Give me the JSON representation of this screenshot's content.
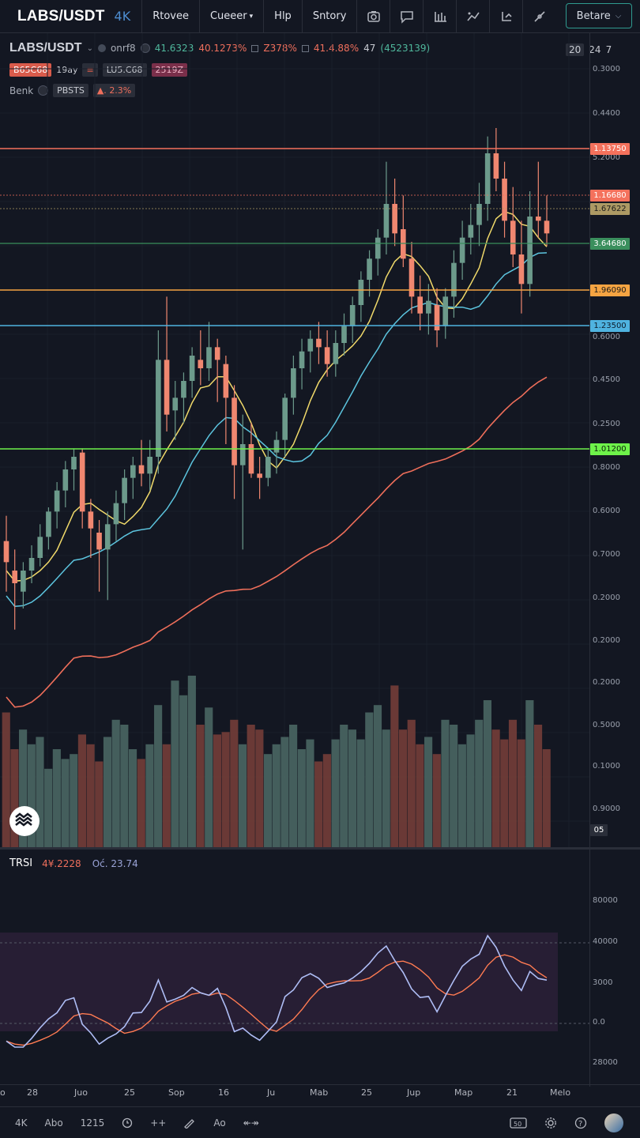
{
  "toolbar": {
    "symbol": "LABS/USDT",
    "resolution": "4K",
    "menu": [
      "Rtovee",
      "Cueeer",
      "Hlp",
      "Sntory"
    ],
    "beta_label": "Betare"
  },
  "legend": {
    "title": "LABS/USDT",
    "source": "onrf8",
    "open": "41.6323",
    "high": "40.1273%",
    "low": "Z378%",
    "close": "41.4.88%",
    "count": "47",
    "change": "(4523139)",
    "chip_a": "B65C68",
    "tag_a": "19ay",
    "chip_b": "LU5.C68",
    "chip_c": "2519Z",
    "benk_label": "Benk",
    "pbsts_label": "PBSTS",
    "pct_label": "2.3%",
    "right_a": "20",
    "right_b": "24",
    "right_c": "7"
  },
  "price_axis": {
    "ticks": [
      {
        "label": "0.3000",
        "price": 0.3
      },
      {
        "label": "0.4400",
        "price": 0.44
      },
      {
        "label": "5.2000",
        "price": 5.2
      },
      {
        "label": "0.6000",
        "price": 0.6
      },
      {
        "label": "0.4500",
        "price": 0.45
      },
      {
        "label": "0.2500",
        "price": 0.25
      },
      {
        "label": "0.8000",
        "price": 0.8
      },
      {
        "label": "0.6000",
        "price": 0.6
      },
      {
        "label": "0.7000",
        "price": 0.7
      },
      {
        "label": "0.2000",
        "price": 0.2
      }
    ],
    "volume_ticks": [
      "0.2000",
      "0.2000",
      "0.5000",
      "0.1000",
      "0.9000"
    ],
    "volume_tag": "05"
  },
  "levels": [
    {
      "label": "1.13750",
      "color": "#f4715c",
      "fg": "#ffffff"
    },
    {
      "label": "1.16680",
      "color": "#f4715c",
      "fg": "#ffffff"
    },
    {
      "label": "1.67622",
      "color": "#ad9a64",
      "fg": "#1b1b1b"
    },
    {
      "label": "3.64680",
      "color": "#3a8f5d",
      "fg": "#ffffff"
    },
    {
      "label": "1.96090",
      "color": "#f5a442",
      "fg": "#1b1b1b"
    },
    {
      "label": "1.23500",
      "color": "#4fb3e0",
      "fg": "#0d1b2a"
    },
    {
      "label": "1.01200",
      "color": "#6ef24a",
      "fg": "#0c220a"
    }
  ],
  "colors": {
    "up": "#6c9a8b",
    "down": "#f08770",
    "ma_fast": "#f0d96a",
    "ma_mid": "#5cc4de",
    "ma_slow": "#ee6e5a",
    "rsi": "#aebdf5",
    "rsi_signal": "#ff7b52"
  },
  "rsi": {
    "title": "TRSI",
    "value_a": "4¥.2228",
    "value_b": "Oć. 23.74",
    "ticks": [
      "80000",
      "40000",
      "3000",
      "0.0",
      "28000"
    ]
  },
  "time_axis": [
    "o",
    "28",
    "Juo",
    "25",
    "Sop",
    "16",
    "Ju",
    "Mab",
    "25",
    "Jup",
    "Map",
    "21",
    "Melo"
  ],
  "bottom": {
    "range": "4K",
    "period": "Abo",
    "count": "1215",
    "zoom": "Ao"
  },
  "chart_data": {
    "type": "candlestick",
    "candles": [
      {
        "o": 0.62,
        "h": 0.68,
        "l": 0.5,
        "c": 0.57
      },
      {
        "o": 0.55,
        "h": 0.6,
        "l": 0.41,
        "c": 0.52
      },
      {
        "o": 0.5,
        "h": 0.57,
        "l": 0.46,
        "c": 0.55
      },
      {
        "o": 0.55,
        "h": 0.61,
        "l": 0.52,
        "c": 0.58
      },
      {
        "o": 0.58,
        "h": 0.66,
        "l": 0.56,
        "c": 0.63
      },
      {
        "o": 0.63,
        "h": 0.7,
        "l": 0.6,
        "c": 0.69
      },
      {
        "o": 0.69,
        "h": 0.76,
        "l": 0.65,
        "c": 0.74
      },
      {
        "o": 0.74,
        "h": 0.81,
        "l": 0.7,
        "c": 0.79
      },
      {
        "o": 0.79,
        "h": 0.84,
        "l": 0.74,
        "c": 0.82
      },
      {
        "o": 0.83,
        "h": 0.84,
        "l": 0.65,
        "c": 0.69
      },
      {
        "o": 0.69,
        "h": 0.72,
        "l": 0.58,
        "c": 0.65
      },
      {
        "o": 0.64,
        "h": 0.67,
        "l": 0.5,
        "c": 0.6
      },
      {
        "o": 0.6,
        "h": 0.69,
        "l": 0.48,
        "c": 0.66
      },
      {
        "o": 0.66,
        "h": 0.74,
        "l": 0.62,
        "c": 0.71
      },
      {
        "o": 0.71,
        "h": 0.79,
        "l": 0.67,
        "c": 0.77
      },
      {
        "o": 0.77,
        "h": 0.82,
        "l": 0.72,
        "c": 0.8
      },
      {
        "o": 0.8,
        "h": 0.86,
        "l": 0.75,
        "c": 0.78
      },
      {
        "o": 0.78,
        "h": 0.86,
        "l": 0.74,
        "c": 0.82
      },
      {
        "o": 0.82,
        "h": 1.12,
        "l": 0.78,
        "c": 1.05
      },
      {
        "o": 1.05,
        "h": 1.2,
        "l": 0.88,
        "c": 0.92
      },
      {
        "o": 0.93,
        "h": 1.0,
        "l": 0.86,
        "c": 0.96
      },
      {
        "o": 0.96,
        "h": 1.02,
        "l": 0.9,
        "c": 1.0
      },
      {
        "o": 1.0,
        "h": 1.08,
        "l": 0.96,
        "c": 1.06
      },
      {
        "o": 1.05,
        "h": 1.12,
        "l": 0.99,
        "c": 1.03
      },
      {
        "o": 1.03,
        "h": 1.14,
        "l": 1.0,
        "c": 1.08
      },
      {
        "o": 1.08,
        "h": 1.1,
        "l": 0.95,
        "c": 1.05
      },
      {
        "o": 1.04,
        "h": 1.06,
        "l": 0.85,
        "c": 0.96
      },
      {
        "o": 0.96,
        "h": 0.99,
        "l": 0.72,
        "c": 0.8
      },
      {
        "o": 0.8,
        "h": 0.92,
        "l": 0.6,
        "c": 0.85
      },
      {
        "o": 0.85,
        "h": 0.9,
        "l": 0.77,
        "c": 0.78
      },
      {
        "o": 0.78,
        "h": 0.82,
        "l": 0.72,
        "c": 0.77
      },
      {
        "o": 0.77,
        "h": 0.84,
        "l": 0.75,
        "c": 0.82
      },
      {
        "o": 0.83,
        "h": 0.88,
        "l": 0.78,
        "c": 0.86
      },
      {
        "o": 0.86,
        "h": 0.97,
        "l": 0.82,
        "c": 0.96
      },
      {
        "o": 0.96,
        "h": 1.06,
        "l": 0.92,
        "c": 1.03
      },
      {
        "o": 1.03,
        "h": 1.1,
        "l": 0.98,
        "c": 1.07
      },
      {
        "o": 1.07,
        "h": 1.12,
        "l": 1.02,
        "c": 1.1
      },
      {
        "o": 1.1,
        "h": 1.14,
        "l": 1.04,
        "c": 1.08
      },
      {
        "o": 1.08,
        "h": 1.12,
        "l": 1.01,
        "c": 1.04
      },
      {
        "o": 1.04,
        "h": 1.12,
        "l": 1.01,
        "c": 1.09
      },
      {
        "o": 1.09,
        "h": 1.16,
        "l": 1.06,
        "c": 1.13
      },
      {
        "o": 1.13,
        "h": 1.2,
        "l": 1.09,
        "c": 1.18
      },
      {
        "o": 1.18,
        "h": 1.26,
        "l": 1.14,
        "c": 1.24
      },
      {
        "o": 1.24,
        "h": 1.31,
        "l": 1.2,
        "c": 1.29
      },
      {
        "o": 1.29,
        "h": 1.36,
        "l": 1.25,
        "c": 1.34
      },
      {
        "o": 1.34,
        "h": 1.52,
        "l": 1.3,
        "c": 1.42
      },
      {
        "o": 1.42,
        "h": 1.48,
        "l": 1.32,
        "c": 1.35
      },
      {
        "o": 1.36,
        "h": 1.44,
        "l": 1.27,
        "c": 1.29
      },
      {
        "o": 1.29,
        "h": 1.33,
        "l": 1.16,
        "c": 1.2
      },
      {
        "o": 1.2,
        "h": 1.25,
        "l": 1.12,
        "c": 1.16
      },
      {
        "o": 1.16,
        "h": 1.23,
        "l": 1.11,
        "c": 1.19
      },
      {
        "o": 1.18,
        "h": 1.22,
        "l": 1.08,
        "c": 1.12
      },
      {
        "o": 1.13,
        "h": 1.22,
        "l": 1.1,
        "c": 1.2
      },
      {
        "o": 1.2,
        "h": 1.31,
        "l": 1.15,
        "c": 1.28
      },
      {
        "o": 1.28,
        "h": 1.38,
        "l": 1.24,
        "c": 1.34
      },
      {
        "o": 1.34,
        "h": 1.42,
        "l": 1.3,
        "c": 1.37
      },
      {
        "o": 1.37,
        "h": 1.47,
        "l": 1.32,
        "c": 1.42
      },
      {
        "o": 1.42,
        "h": 1.58,
        "l": 1.38,
        "c": 1.54
      },
      {
        "o": 1.54,
        "h": 1.6,
        "l": 1.45,
        "c": 1.48
      },
      {
        "o": 1.48,
        "h": 1.52,
        "l": 1.34,
        "c": 1.38
      },
      {
        "o": 1.38,
        "h": 1.46,
        "l": 1.27,
        "c": 1.3
      },
      {
        "o": 1.3,
        "h": 1.38,
        "l": 1.16,
        "c": 1.23
      },
      {
        "o": 1.23,
        "h": 1.45,
        "l": 1.2,
        "c": 1.39
      },
      {
        "o": 1.39,
        "h": 1.52,
        "l": 1.34,
        "c": 1.38
      },
      {
        "o": 1.38,
        "h": 1.44,
        "l": 1.32,
        "c": 1.35
      }
    ],
    "volume": [
      0.55,
      0.4,
      0.48,
      0.42,
      0.45,
      0.32,
      0.4,
      0.36,
      0.38,
      0.46,
      0.42,
      0.35,
      0.45,
      0.52,
      0.5,
      0.4,
      0.36,
      0.42,
      0.58,
      0.42,
      0.68,
      0.62,
      0.7,
      0.5,
      0.57,
      0.46,
      0.47,
      0.52,
      0.42,
      0.5,
      0.48,
      0.38,
      0.42,
      0.45,
      0.5,
      0.4,
      0.44,
      0.35,
      0.38,
      0.44,
      0.5,
      0.48,
      0.44,
      0.55,
      0.58,
      0.48,
      0.66,
      0.48,
      0.52,
      0.42,
      0.45,
      0.38,
      0.52,
      0.5,
      0.42,
      0.46,
      0.52,
      0.6,
      0.48,
      0.44,
      0.52,
      0.44,
      0.6,
      0.5,
      0.4
    ]
  }
}
